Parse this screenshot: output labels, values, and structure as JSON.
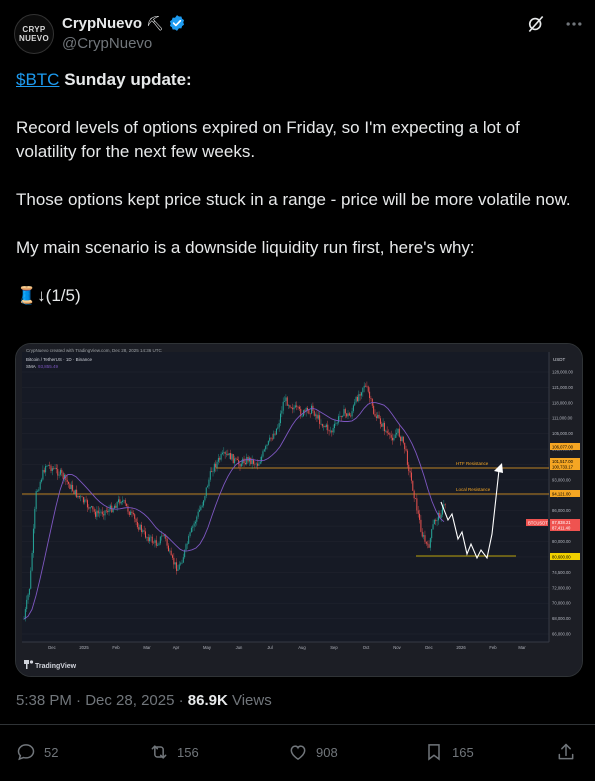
{
  "author": {
    "display_name": "CrypNuevo",
    "handle": "@CrypNuevo",
    "avatar_text_1": "CRYP",
    "avatar_text_2": "NUEVO",
    "emoji": "⛏"
  },
  "tweet": {
    "cashtag": "$BTC",
    "heading": " Sunday update:",
    "para1": "Record levels of options expired on Friday, so I'm expecting a lot of volatility for the next few weeks.",
    "para2": "Those options kept price stuck in a range - price will be more volatile now.",
    "para3": "My main scenario is a downside liquidity run first, here's why:",
    "thread_marker": "🧵↓(1/5)"
  },
  "chart": {
    "header_text": "CrypNuevo created with TradingView.com, Dec 28, 2025 14:36 UTC",
    "symbol_line": "Bitcoin / TetherUS · 1D · Binance",
    "sma_label": "SMA",
    "sma_value": "93,855.49",
    "currency": "USDT",
    "htf_label": "HTF Resistance",
    "local_label": "Local Resistance",
    "brand": "TradingView",
    "x_labels": [
      "Dec",
      "2025",
      "Feb",
      "Mar",
      "Apr",
      "May",
      "Jun",
      "Jul",
      "Aug",
      "Sep",
      "Oct",
      "Nov",
      "Dec",
      "2026",
      "Feb",
      "Mar"
    ],
    "y_labels": [
      "128,000.00",
      "121,000.00",
      "118,000.00",
      "111,000.00",
      "105,000.00",
      "101,000.00",
      "97,000.00",
      "93,000.00",
      "89,000.00",
      "86,000.00",
      "83,000.00",
      "80,000.00",
      "77,000.00",
      "74,500.00",
      "72,000.00",
      "70,000.00",
      "68,000.00",
      "66,000.00"
    ],
    "price_tags": {
      "top": "106,077.00",
      "htf_a": "101,517.00",
      "htf_b": "100,733.17",
      "local": "94,121.00",
      "current": "87,838.21",
      "current_time": "87,411.40",
      "support": "80,600.00",
      "symbol_tag": "BTCUSDT"
    }
  },
  "meta": {
    "time": "5:38 PM",
    "sep": " · ",
    "date": "Dec 28, 2025",
    "views_num": "86.9K",
    "views_label": " Views"
  },
  "actions": {
    "replies": "52",
    "reposts": "156",
    "likes": "908",
    "bookmarks": "165"
  },
  "colors": {
    "link": "#1d9bf0",
    "verified": "#1d9bf0",
    "muted": "#71767b",
    "up_candle": "#26a69a",
    "down_candle": "#ef5350",
    "sma": "#7e57c2",
    "resistance": "#f5a623"
  }
}
